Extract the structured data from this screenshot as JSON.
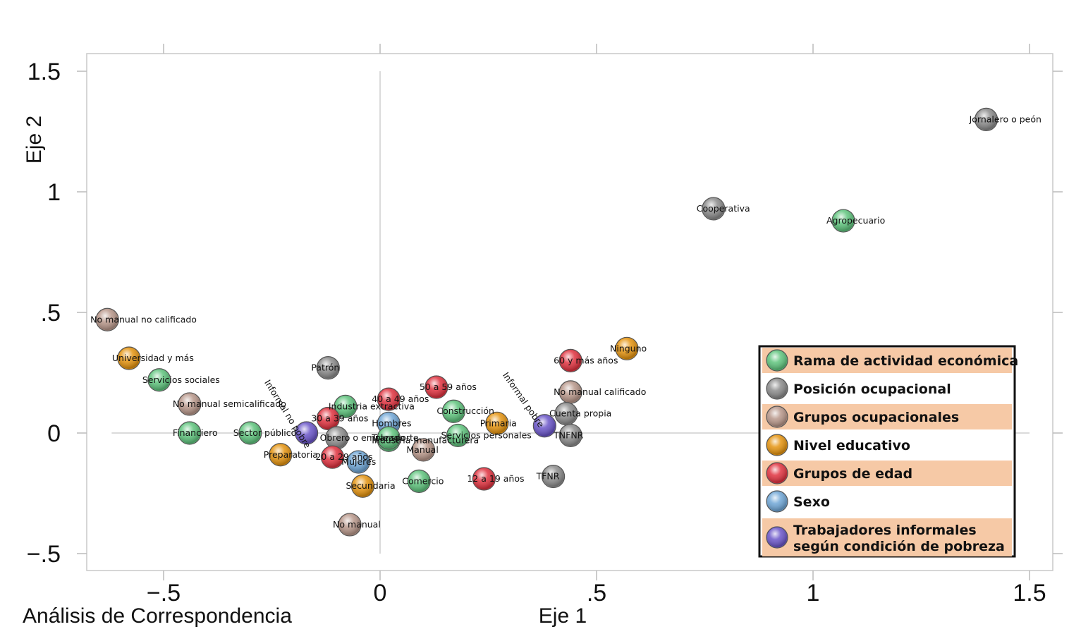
{
  "chart_data": {
    "type": "scatter",
    "title": "",
    "caption": "Análisis de Correspondencia",
    "xlabel": "Eje 1",
    "ylabel": "Eje 2",
    "xlim": [
      -0.67,
      1.55
    ],
    "ylim": [
      -0.57,
      1.57
    ],
    "xticks": [
      -0.5,
      0,
      0.5,
      1,
      1.5
    ],
    "xtick_labels": [
      "−.5",
      "0",
      ".5",
      "1",
      "1.5"
    ],
    "yticks": [
      -0.5,
      0,
      0.5,
      1,
      1.5
    ],
    "ytick_labels": [
      "−.5",
      "0",
      ".5",
      "1",
      "1.5"
    ],
    "grid": true,
    "legend_position": "bottom-right",
    "groups": [
      {
        "name": "Rama de actividad económica",
        "color": "#5fc47d"
      },
      {
        "name": "Posición ocupacional",
        "color": "#8c8c8c"
      },
      {
        "name": "Grupos ocupacionales",
        "color": "#b8978a"
      },
      {
        "name": "Nivel educativo",
        "color": "#e59410"
      },
      {
        "name": "Grupos de edad",
        "color": "#e0323f"
      },
      {
        "name": "Sexo",
        "color": "#6fa6d6"
      },
      {
        "name": "Trabajadores informales según condición de pobreza",
        "color": "#6a55c9"
      }
    ],
    "points": [
      {
        "label": "Jornalero o peón",
        "x": 1.4,
        "y": 1.3,
        "group": 1
      },
      {
        "label": "Cooperativa",
        "x": 0.77,
        "y": 0.93,
        "group": 1
      },
      {
        "label": "Agropecuario",
        "x": 1.07,
        "y": 0.88,
        "group": 0
      },
      {
        "label": "No manual no calificado",
        "x": -0.63,
        "y": 0.47,
        "group": 2
      },
      {
        "label": "Universidad y más",
        "x": -0.58,
        "y": 0.31,
        "group": 3
      },
      {
        "label": "Servicios sociales",
        "x": -0.51,
        "y": 0.22,
        "group": 0
      },
      {
        "label": "No manual semicalificado",
        "x": -0.44,
        "y": 0.12,
        "group": 2
      },
      {
        "label": "Financiero",
        "x": -0.44,
        "y": 0.0,
        "group": 0
      },
      {
        "label": "Sector público",
        "x": -0.3,
        "y": 0.0,
        "group": 0
      },
      {
        "label": "Preparatoria",
        "x": -0.23,
        "y": -0.09,
        "group": 3
      },
      {
        "label": "Patrón",
        "x": -0.12,
        "y": 0.27,
        "group": 1
      },
      {
        "label": "Industria extractiva",
        "x": -0.08,
        "y": 0.11,
        "group": 0
      },
      {
        "label": "40 a 49 años",
        "x": 0.02,
        "y": 0.14,
        "group": 4
      },
      {
        "label": "50 a 59 años",
        "x": 0.13,
        "y": 0.19,
        "group": 4
      },
      {
        "label": "30 a 39 años",
        "x": -0.12,
        "y": 0.06,
        "group": 4
      },
      {
        "label": "Hombres",
        "x": 0.02,
        "y": 0.04,
        "group": 5
      },
      {
        "label": "Obrero o empleado",
        "x": -0.1,
        "y": -0.02,
        "group": 1
      },
      {
        "label": "Industria manufacturera",
        "x": 0.02,
        "y": -0.03,
        "group": 0
      },
      {
        "label": "Transporte",
        "x": 0.02,
        "y": -0.02,
        "group": 0
      },
      {
        "label": "Manual",
        "x": 0.1,
        "y": -0.07,
        "group": 2
      },
      {
        "label": "20 a 29 años",
        "x": -0.11,
        "y": -0.1,
        "group": 4
      },
      {
        "label": "Mujeres",
        "x": -0.05,
        "y": -0.12,
        "group": 5
      },
      {
        "label": "Secundaria",
        "x": -0.04,
        "y": -0.22,
        "group": 3
      },
      {
        "label": "Comercio",
        "x": 0.09,
        "y": -0.2,
        "group": 0
      },
      {
        "label": "Construcción",
        "x": 0.17,
        "y": 0.09,
        "group": 0
      },
      {
        "label": "Servicios personales",
        "x": 0.18,
        "y": -0.01,
        "group": 0
      },
      {
        "label": "Primaria",
        "x": 0.27,
        "y": 0.04,
        "group": 3
      },
      {
        "label": "12 a 19 años",
        "x": 0.24,
        "y": -0.19,
        "group": 4
      },
      {
        "label": "No manual",
        "x": -0.07,
        "y": -0.38,
        "group": 2
      },
      {
        "label": "Informal no pobre",
        "x": -0.17,
        "y": 0.0,
        "group": 6
      },
      {
        "label": "Informal pobre",
        "x": 0.38,
        "y": 0.03,
        "group": 6
      },
      {
        "label": "60 y más años",
        "x": 0.44,
        "y": 0.3,
        "group": 4
      },
      {
        "label": "No manual calificado",
        "x": 0.44,
        "y": 0.17,
        "group": 2
      },
      {
        "label": "Cuenta propia",
        "x": 0.43,
        "y": 0.08,
        "group": 1
      },
      {
        "label": "TNFNR",
        "x": 0.44,
        "y": -0.01,
        "group": 1
      },
      {
        "label": "TFNR",
        "x": 0.4,
        "y": -0.18,
        "group": 1
      },
      {
        "label": "Ninguno",
        "x": 0.57,
        "y": 0.35,
        "group": 3
      }
    ]
  }
}
